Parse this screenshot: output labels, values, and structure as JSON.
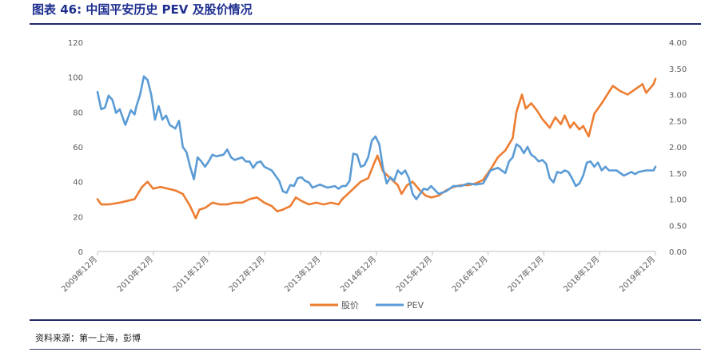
{
  "title": "图表 46: 中国平安历史 PEV 及股价情况",
  "source": "资料来源：第一上海，彭博",
  "chart_data": {
    "type": "line",
    "title": "",
    "xlabel": "",
    "ylabel": "",
    "x_ticks": [
      "2009年12月",
      "2010年12月",
      "2011年12月",
      "2012年12月",
      "2013年12月",
      "2014年12月",
      "2015年12月",
      "2016年12月",
      "2017年12月",
      "2018年12月",
      "2019年12月"
    ],
    "y_left": {
      "ticks": [
        "0",
        "20",
        "40",
        "60",
        "80",
        "100",
        "120"
      ],
      "range": [
        0,
        120
      ]
    },
    "y_right": {
      "ticks": [
        "0.00",
        "0.50",
        "1.00",
        "1.50",
        "2.00",
        "2.50",
        "3.00",
        "3.50",
        "4.00"
      ],
      "range": [
        0,
        4
      ]
    },
    "legend_position": "bottom-center",
    "grid": false,
    "series": [
      {
        "name": "股价",
        "axis": "left",
        "color": "#ed7d31",
        "points": [
          [
            0,
            30
          ],
          [
            0.1,
            27
          ],
          [
            0.3,
            27
          ],
          [
            0.6,
            28
          ],
          [
            0.8,
            29
          ],
          [
            1.0,
            30
          ],
          [
            1.2,
            37
          ],
          [
            1.35,
            40
          ],
          [
            1.5,
            36
          ],
          [
            1.7,
            37
          ],
          [
            1.9,
            36
          ],
          [
            2.1,
            35
          ],
          [
            2.3,
            33
          ],
          [
            2.5,
            26
          ],
          [
            2.65,
            19
          ],
          [
            2.75,
            24
          ],
          [
            2.9,
            25
          ],
          [
            3.1,
            28
          ],
          [
            3.3,
            27
          ],
          [
            3.5,
            27
          ],
          [
            3.7,
            28
          ],
          [
            3.9,
            28
          ],
          [
            4.1,
            30
          ],
          [
            4.3,
            31
          ],
          [
            4.5,
            28
          ],
          [
            4.7,
            26
          ],
          [
            4.85,
            23
          ],
          [
            5.0,
            24
          ],
          [
            5.2,
            26
          ],
          [
            5.35,
            31
          ],
          [
            5.5,
            29
          ],
          [
            5.7,
            27
          ],
          [
            5.9,
            28
          ],
          [
            6.1,
            27
          ],
          [
            6.3,
            28
          ],
          [
            6.5,
            27
          ],
          [
            6.6,
            30
          ],
          [
            6.8,
            34
          ],
          [
            7.0,
            38
          ],
          [
            7.1,
            40
          ],
          [
            7.3,
            42
          ],
          [
            7.45,
            50
          ],
          [
            7.55,
            55
          ],
          [
            7.7,
            46
          ],
          [
            7.9,
            42
          ],
          [
            8.1,
            38
          ],
          [
            8.2,
            33
          ],
          [
            8.35,
            38
          ],
          [
            8.5,
            40
          ],
          [
            8.7,
            35
          ],
          [
            8.85,
            32
          ],
          [
            9.0,
            31
          ],
          [
            9.2,
            32
          ],
          [
            9.4,
            35
          ],
          [
            9.6,
            37
          ],
          [
            9.8,
            38
          ],
          [
            10.0,
            38
          ],
          [
            10.2,
            39
          ],
          [
            10.4,
            41
          ],
          [
            10.6,
            47
          ],
          [
            10.8,
            54
          ],
          [
            11.0,
            58
          ],
          [
            11.2,
            65
          ],
          [
            11.3,
            80
          ],
          [
            11.45,
            90
          ],
          [
            11.55,
            82
          ],
          [
            11.7,
            85
          ],
          [
            11.85,
            81
          ],
          [
            12.0,
            76
          ],
          [
            12.2,
            71
          ],
          [
            12.35,
            77
          ],
          [
            12.5,
            73
          ],
          [
            12.6,
            78
          ],
          [
            12.75,
            71
          ],
          [
            12.85,
            74
          ],
          [
            13.0,
            70
          ],
          [
            13.1,
            72
          ],
          [
            13.25,
            66
          ],
          [
            13.4,
            79
          ],
          [
            13.6,
            85
          ],
          [
            13.75,
            90
          ],
          [
            13.9,
            95
          ],
          [
            14.1,
            92
          ],
          [
            14.3,
            90
          ],
          [
            14.5,
            93
          ],
          [
            14.7,
            96
          ],
          [
            14.8,
            91
          ],
          [
            15.0,
            96
          ],
          [
            15.05,
            99
          ]
        ]
      },
      {
        "name": "PEV",
        "axis": "right",
        "color": "#5b9bd5",
        "points": [
          [
            0,
            3.05
          ],
          [
            0.1,
            2.72
          ],
          [
            0.2,
            2.75
          ],
          [
            0.3,
            2.98
          ],
          [
            0.4,
            2.9
          ],
          [
            0.5,
            2.65
          ],
          [
            0.6,
            2.72
          ],
          [
            0.75,
            2.42
          ],
          [
            0.9,
            2.7
          ],
          [
            1.0,
            2.62
          ],
          [
            1.05,
            2.78
          ],
          [
            1.15,
            3.0
          ],
          [
            1.25,
            3.35
          ],
          [
            1.35,
            3.28
          ],
          [
            1.45,
            3.0
          ],
          [
            1.55,
            2.52
          ],
          [
            1.65,
            2.78
          ],
          [
            1.75,
            2.52
          ],
          [
            1.85,
            2.6
          ],
          [
            1.95,
            2.42
          ],
          [
            2.1,
            2.35
          ],
          [
            2.2,
            2.5
          ],
          [
            2.3,
            2.0
          ],
          [
            2.4,
            1.9
          ],
          [
            2.5,
            1.62
          ],
          [
            2.6,
            1.38
          ],
          [
            2.7,
            1.8
          ],
          [
            2.8,
            1.72
          ],
          [
            2.9,
            1.62
          ],
          [
            3.0,
            1.72
          ],
          [
            3.1,
            1.85
          ],
          [
            3.2,
            1.82
          ],
          [
            3.4,
            1.85
          ],
          [
            3.5,
            1.95
          ],
          [
            3.6,
            1.8
          ],
          [
            3.7,
            1.75
          ],
          [
            3.9,
            1.8
          ],
          [
            4.0,
            1.72
          ],
          [
            4.1,
            1.72
          ],
          [
            4.2,
            1.6
          ],
          [
            4.3,
            1.7
          ],
          [
            4.4,
            1.72
          ],
          [
            4.5,
            1.62
          ],
          [
            4.7,
            1.55
          ],
          [
            4.8,
            1.45
          ],
          [
            4.9,
            1.35
          ],
          [
            5.0,
            1.15
          ],
          [
            5.1,
            1.12
          ],
          [
            5.2,
            1.27
          ],
          [
            5.3,
            1.25
          ],
          [
            5.4,
            1.4
          ],
          [
            5.5,
            1.42
          ],
          [
            5.6,
            1.35
          ],
          [
            5.7,
            1.32
          ],
          [
            5.8,
            1.22
          ],
          [
            6.0,
            1.28
          ],
          [
            6.2,
            1.22
          ],
          [
            6.4,
            1.25
          ],
          [
            6.5,
            1.2
          ],
          [
            6.6,
            1.25
          ],
          [
            6.7,
            1.25
          ],
          [
            6.8,
            1.35
          ],
          [
            6.9,
            1.87
          ],
          [
            7.0,
            1.85
          ],
          [
            7.1,
            1.62
          ],
          [
            7.2,
            1.65
          ],
          [
            7.3,
            1.8
          ],
          [
            7.4,
            2.12
          ],
          [
            7.5,
            2.2
          ],
          [
            7.6,
            2.05
          ],
          [
            7.7,
            1.6
          ],
          [
            7.8,
            1.3
          ],
          [
            7.9,
            1.42
          ],
          [
            8.0,
            1.35
          ],
          [
            8.1,
            1.55
          ],
          [
            8.2,
            1.48
          ],
          [
            8.3,
            1.55
          ],
          [
            8.4,
            1.4
          ],
          [
            8.5,
            1.1
          ],
          [
            8.6,
            1.0
          ],
          [
            8.7,
            1.1
          ],
          [
            8.8,
            1.2
          ],
          [
            8.9,
            1.18
          ],
          [
            9.0,
            1.25
          ],
          [
            9.2,
            1.1
          ],
          [
            9.4,
            1.15
          ],
          [
            9.6,
            1.25
          ],
          [
            9.8,
            1.25
          ],
          [
            10.0,
            1.3
          ],
          [
            10.2,
            1.28
          ],
          [
            10.4,
            1.3
          ],
          [
            10.5,
            1.42
          ],
          [
            10.6,
            1.55
          ],
          [
            10.8,
            1.6
          ],
          [
            11.0,
            1.5
          ],
          [
            11.1,
            1.72
          ],
          [
            11.2,
            1.8
          ],
          [
            11.3,
            2.05
          ],
          [
            11.4,
            2.0
          ],
          [
            11.5,
            1.88
          ],
          [
            11.6,
            2.0
          ],
          [
            11.7,
            1.85
          ],
          [
            11.8,
            1.8
          ],
          [
            11.9,
            1.72
          ],
          [
            12.0,
            1.75
          ],
          [
            12.1,
            1.68
          ],
          [
            12.2,
            1.4
          ],
          [
            12.3,
            1.32
          ],
          [
            12.4,
            1.52
          ],
          [
            12.5,
            1.5
          ],
          [
            12.6,
            1.55
          ],
          [
            12.7,
            1.52
          ],
          [
            12.8,
            1.4
          ],
          [
            12.9,
            1.25
          ],
          [
            13.0,
            1.3
          ],
          [
            13.1,
            1.45
          ],
          [
            13.2,
            1.7
          ],
          [
            13.3,
            1.72
          ],
          [
            13.4,
            1.62
          ],
          [
            13.5,
            1.7
          ],
          [
            13.6,
            1.55
          ],
          [
            13.7,
            1.62
          ],
          [
            13.8,
            1.55
          ],
          [
            14.0,
            1.55
          ],
          [
            14.2,
            1.45
          ],
          [
            14.4,
            1.52
          ],
          [
            14.5,
            1.48
          ],
          [
            14.6,
            1.52
          ],
          [
            14.8,
            1.55
          ],
          [
            15.0,
            1.55
          ],
          [
            15.05,
            1.62
          ]
        ]
      }
    ]
  }
}
